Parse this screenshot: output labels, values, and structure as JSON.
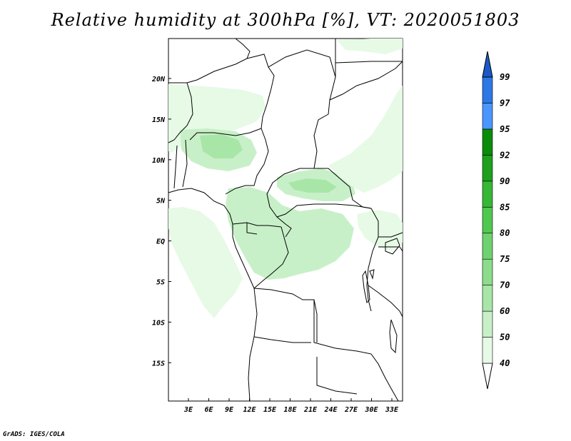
{
  "title": "Relative humidity at 300hPa [%], VT: 2020051803",
  "credit": "GrADS: IGES/COLA",
  "lat_ticks": [
    "20N",
    "15N",
    "10N",
    "5N",
    "EQ",
    "5S",
    "10S",
    "15S"
  ],
  "lon_ticks": [
    "3E",
    "6E",
    "9E",
    "12E",
    "15E",
    "18E",
    "21E",
    "24E",
    "27E",
    "30E",
    "33E"
  ],
  "colorbar": {
    "levels": [
      "40",
      "50",
      "60",
      "70",
      "75",
      "80",
      "85",
      "90",
      "92",
      "95",
      "97",
      "99"
    ],
    "colors": [
      "#e6fae6",
      "#c8f0c8",
      "#a8e6a8",
      "#8cdc8c",
      "#6ed26e",
      "#50c850",
      "#36b836",
      "#1ea01e",
      "#0a8c0a",
      "#4a96ff",
      "#2e78e6",
      "#1a5ac8"
    ]
  },
  "fill_colors": {
    "light": "#e6fae6",
    "mid": "#c8f0c8",
    "dark": "#a8e6a8"
  }
}
